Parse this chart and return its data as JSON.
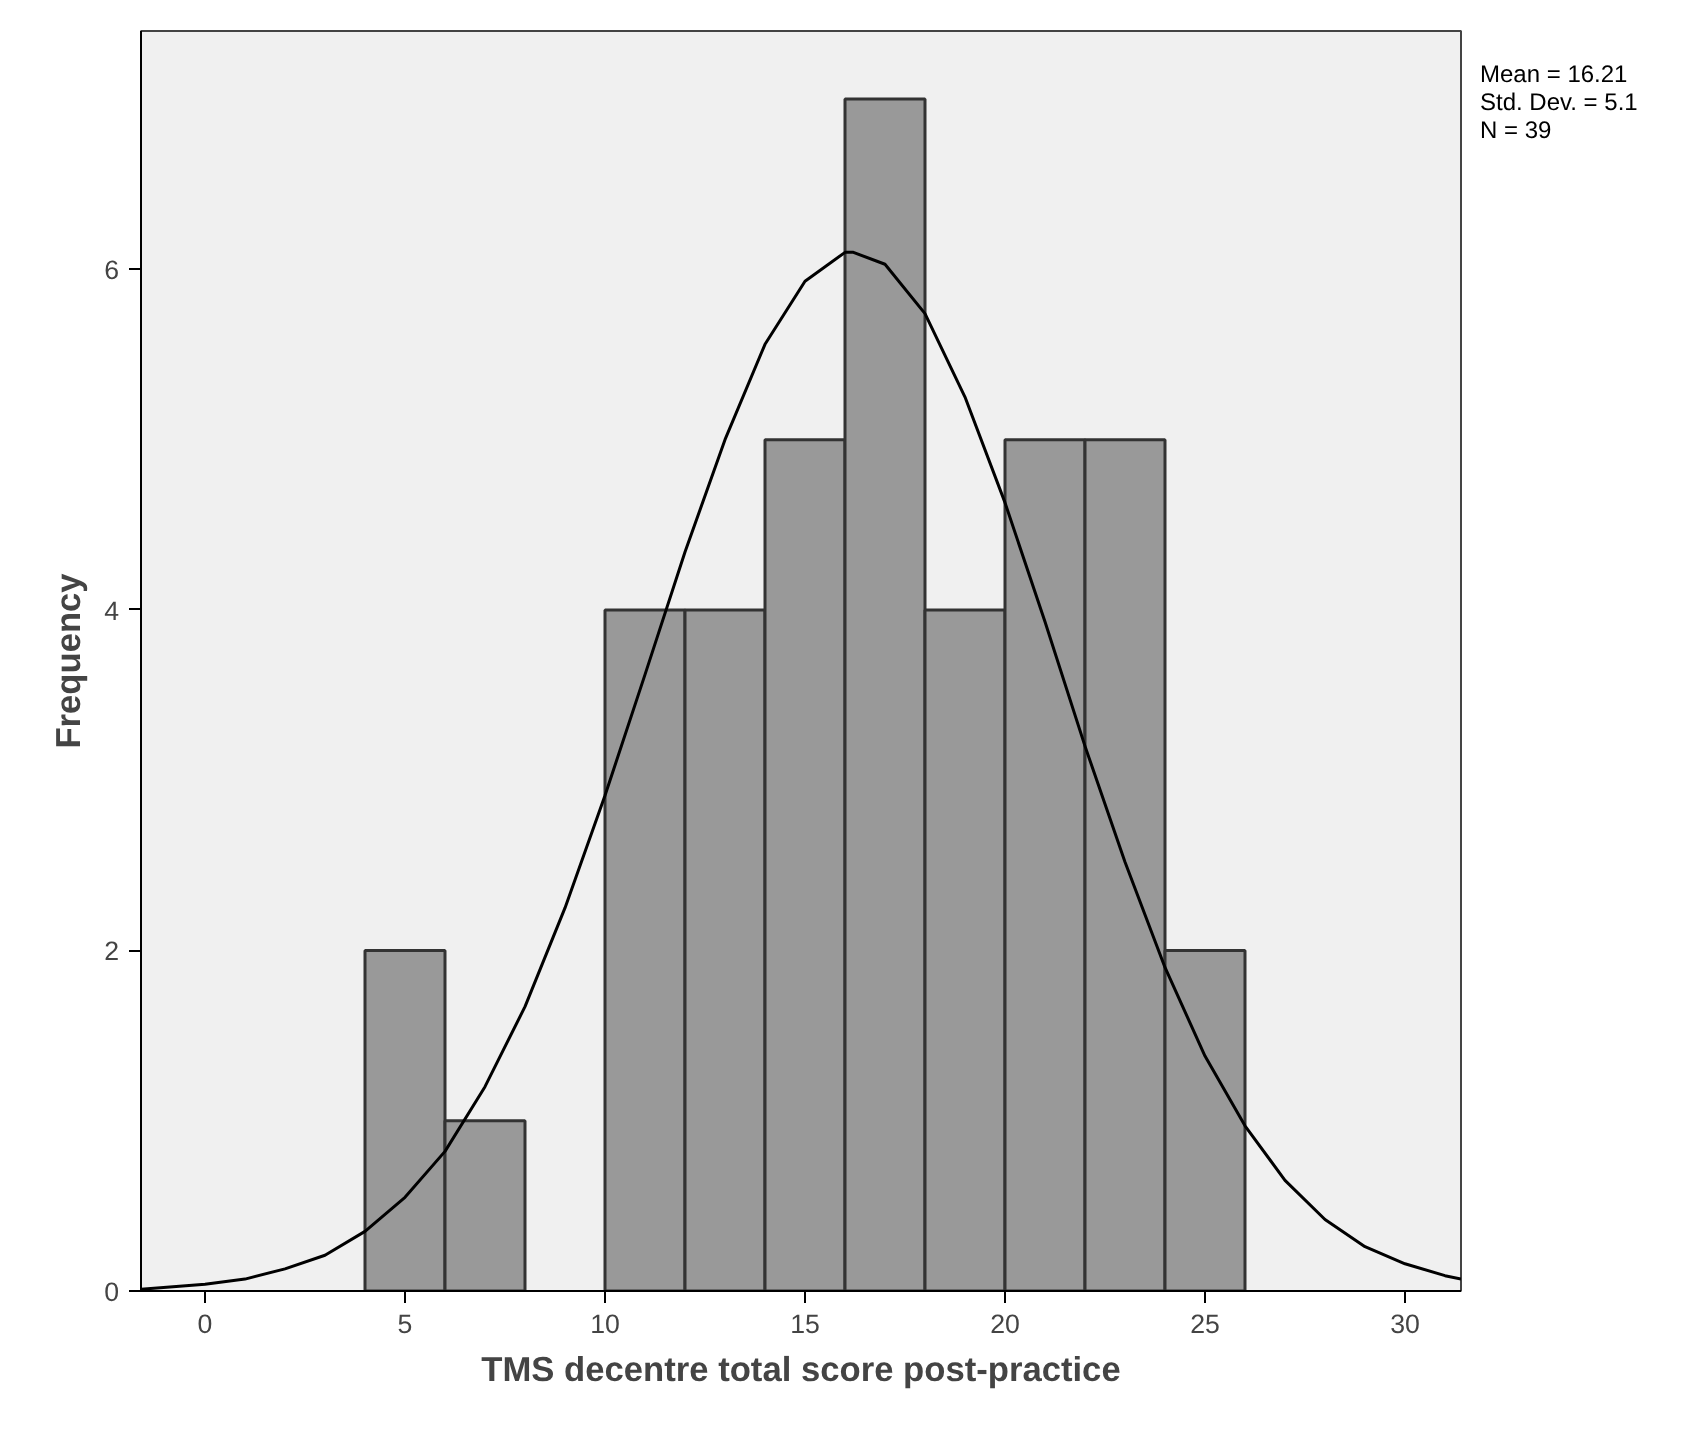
{
  "chart_data": {
    "type": "histogram",
    "xlabel": "TMS decentre total score post-practice",
    "ylabel": "Frequency",
    "bins": [
      4,
      6,
      8,
      10,
      12,
      14,
      16,
      18,
      20,
      22,
      24,
      26
    ],
    "values": [
      2,
      1,
      0,
      4,
      4,
      5,
      7,
      4,
      5,
      5,
      2
    ],
    "color": "#999999",
    "series": [
      {
        "type": "line",
        "color": "#000000",
        "x": [
          -1.6,
          0,
          1,
          2,
          3,
          4,
          5,
          6,
          7,
          8,
          9,
          10,
          11,
          12,
          13,
          14,
          15,
          16,
          16.21,
          17,
          18,
          19,
          20,
          21,
          22,
          23,
          24,
          25,
          26,
          27,
          28,
          29,
          30,
          31,
          31.4
        ],
        "values": [
          0.01,
          0.04,
          0.07,
          0.13,
          0.21,
          0.35,
          0.55,
          0.82,
          1.2,
          1.67,
          2.25,
          2.91,
          3.62,
          4.34,
          5.0,
          5.56,
          5.93,
          6.1,
          6.1,
          6.03,
          5.74,
          5.25,
          4.63,
          3.93,
          3.2,
          2.52,
          1.9,
          1.38,
          0.97,
          0.65,
          0.42,
          0.26,
          0.16,
          0.09,
          0.07
        ]
      }
    ],
    "xlim": [
      -1.6,
      31.4
    ],
    "ylim": [
      0,
      7.4
    ],
    "xticks": [
      0,
      5,
      10,
      15,
      20,
      25,
      30
    ],
    "yticks": [
      0,
      2,
      4,
      6
    ],
    "grid": false,
    "line_style": "solid",
    "annotations": [
      "Mean = 16.21",
      "Std. Dev. = 5.1",
      "N = 39"
    ]
  }
}
